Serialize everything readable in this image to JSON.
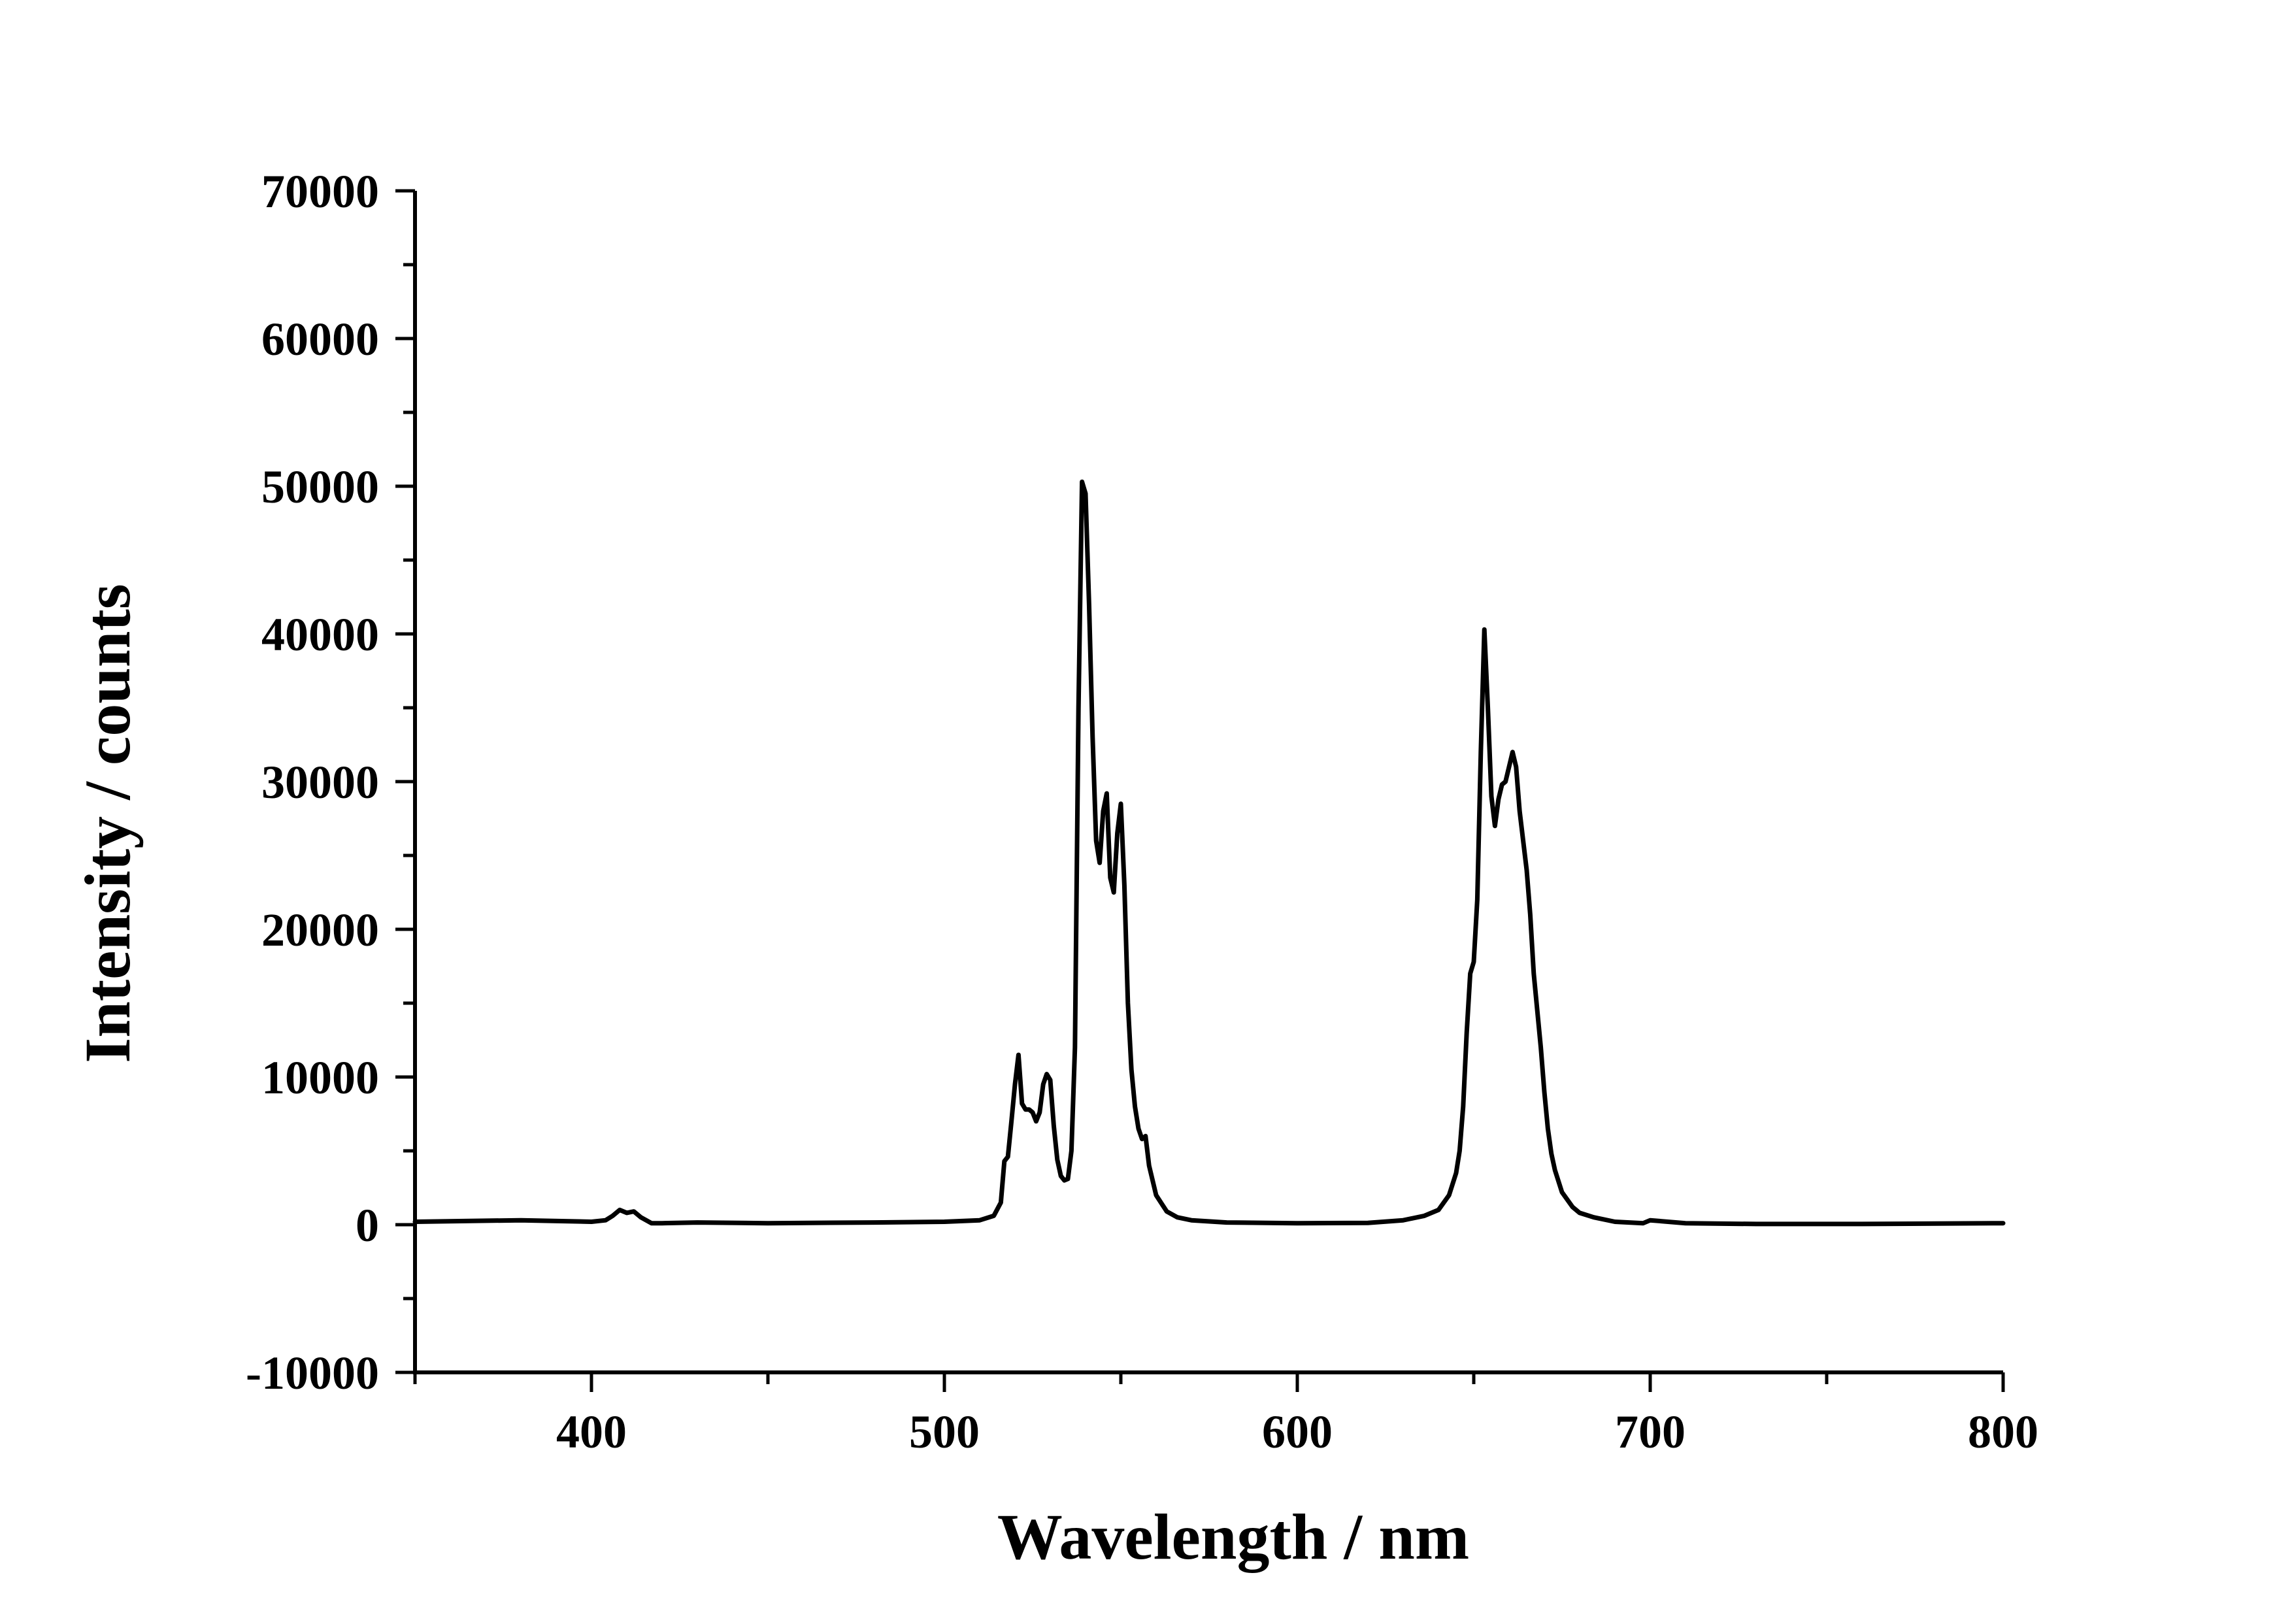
{
  "chart_data": {
    "type": "line",
    "title": "",
    "xlabel": "Wavelength / nm",
    "ylabel": "Intensity / counts",
    "xlim": [
      350,
      800
    ],
    "ylim": [
      -10000,
      70000
    ],
    "grid": false,
    "legend": "none",
    "x_ticks": [
      {
        "value": 400,
        "label": "400"
      },
      {
        "value": 500,
        "label": "500"
      },
      {
        "value": 600,
        "label": "600"
      },
      {
        "value": 700,
        "label": "700"
      },
      {
        "value": 800,
        "label": "800"
      }
    ],
    "x_minor_ticks": [
      350,
      450,
      550,
      650,
      750
    ],
    "y_ticks": [
      {
        "value": -10000,
        "label": "-10000"
      },
      {
        "value": 0,
        "label": "0"
      },
      {
        "value": 10000,
        "label": "10000"
      },
      {
        "value": 20000,
        "label": "20000"
      },
      {
        "value": 30000,
        "label": "30000"
      },
      {
        "value": 40000,
        "label": "40000"
      },
      {
        "value": 50000,
        "label": "50000"
      },
      {
        "value": 60000,
        "label": "60000"
      },
      {
        "value": 70000,
        "label": "70000"
      }
    ],
    "y_minor_ticks": [
      -5000,
      5000,
      15000,
      25000,
      35000,
      45000,
      55000,
      65000
    ],
    "line_color": "#000000",
    "series": [
      {
        "x": [
          350,
          380,
          400,
          404,
          406,
          408,
          410,
          412,
          414,
          417,
          420,
          430,
          450,
          480,
          500,
          510,
          514,
          516,
          517,
          518,
          519,
          520,
          521,
          522,
          523,
          524,
          525,
          526,
          527,
          528,
          529,
          530,
          531,
          532,
          533,
          534,
          535,
          536,
          537,
          538,
          539,
          540,
          541,
          542,
          543,
          544,
          545,
          546,
          547,
          548,
          549,
          550,
          551,
          552,
          553,
          554,
          555,
          556,
          557,
          558,
          560,
          563,
          566,
          570,
          580,
          600,
          620,
          630,
          636,
          640,
          643,
          645,
          646,
          647,
          648,
          649,
          650,
          651,
          652,
          653,
          654,
          655,
          656,
          657,
          658,
          659,
          660,
          661,
          662,
          663,
          664,
          665,
          666,
          667,
          668,
          669,
          670,
          671,
          672,
          673,
          675,
          678,
          680,
          684,
          690,
          698,
          700,
          710,
          730,
          760,
          800
        ],
        "y": [
          200,
          300,
          200,
          300,
          600,
          1000,
          800,
          900,
          500,
          100,
          100,
          150,
          100,
          150,
          200,
          300,
          600,
          1500,
          4300,
          4600,
          7000,
          9500,
          11500,
          8200,
          7800,
          7800,
          7600,
          7000,
          7600,
          9500,
          10200,
          9800,
          6700,
          4400,
          3300,
          3000,
          3100,
          5000,
          12000,
          35000,
          50300,
          49500,
          42000,
          33000,
          26000,
          24500,
          28000,
          29200,
          23500,
          22500,
          26500,
          28500,
          23000,
          15000,
          10500,
          8000,
          6500,
          5800,
          6000,
          4000,
          2000,
          900,
          500,
          300,
          150,
          100,
          120,
          300,
          600,
          1000,
          2000,
          3500,
          5000,
          8000,
          13000,
          17000,
          17800,
          22000,
          32000,
          40300,
          35000,
          29000,
          27000,
          28800,
          29800,
          30000,
          31000,
          32000,
          31000,
          28000,
          26000,
          24000,
          21000,
          17000,
          14500,
          12000,
          9000,
          6500,
          4800,
          3700,
          2200,
          1200,
          800,
          500,
          200,
          100,
          300,
          100,
          50,
          50,
          100
        ]
      }
    ]
  }
}
